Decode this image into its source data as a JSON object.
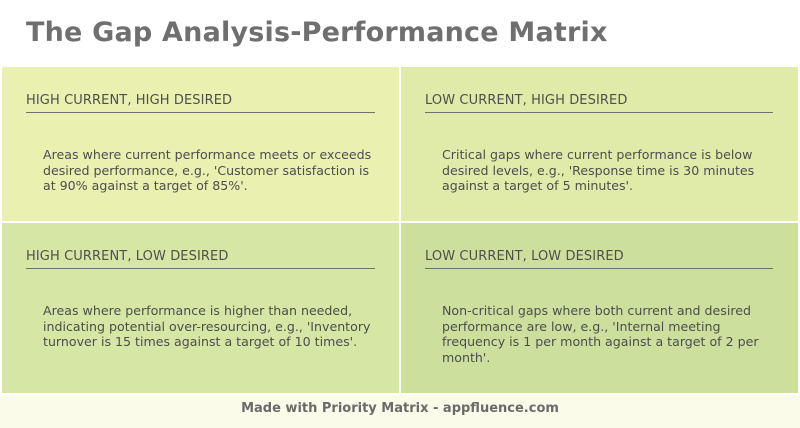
{
  "title": "The Gap Analysis-Performance Matrix",
  "quadrants": [
    {
      "heading": "HIGH CURRENT, HIGH DESIRED",
      "text": "Areas where current performance meets or exceeds desired performance, e.g., 'Customer satisfaction is at 90% against a target of 85%'."
    },
    {
      "heading": "LOW CURRENT, HIGH DESIRED",
      "text": "Critical gaps where current performance is below desired levels, e.g., 'Response time is 30 minutes against a target of 5 minutes'."
    },
    {
      "heading": "HIGH CURRENT, LOW DESIRED",
      "text": "Areas where performance is higher than needed, indicating potential over-resourcing, e.g., 'Inventory turnover is 15 times against a target of 10 times'."
    },
    {
      "heading": "LOW CURRENT, LOW DESIRED",
      "text": "Non-critical gaps where both current and desired performance are low, e.g., 'Internal meeting frequency is 1 per month against a target of 2 per month'."
    }
  ],
  "footer": "Made with Priority Matrix - appfluence.com",
  "colors": {
    "quadrant_top_left": "#eaf0b0",
    "quadrant_top_right": "#e0ebaa",
    "quadrant_bottom_left": "#d6e6a5",
    "quadrant_bottom_right": "#cddf9d",
    "footer_background": "#fafbe8"
  }
}
